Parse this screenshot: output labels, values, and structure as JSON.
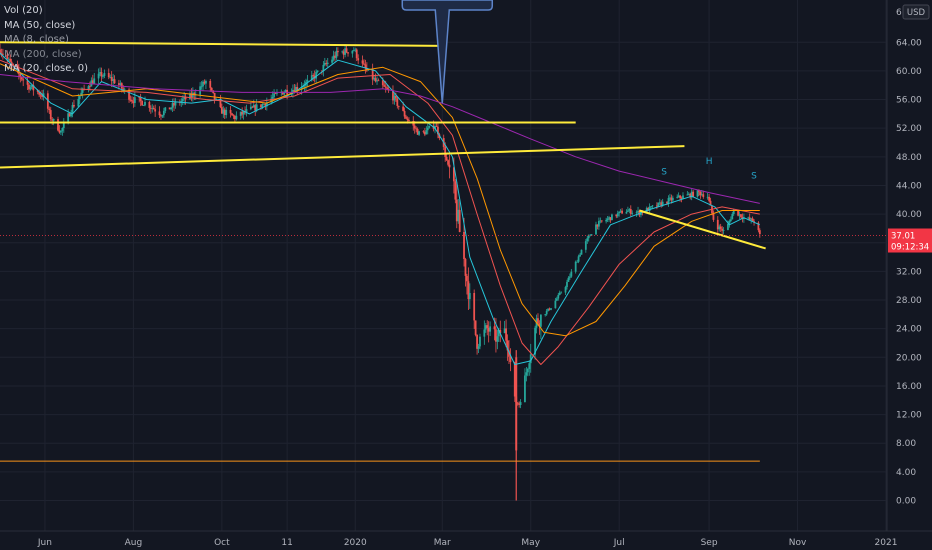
{
  "legend": [
    "Vol (20)",
    "MA (50, close)",
    "MA (8, close)",
    "MA (200, close)",
    "MA (20, close, 0)"
  ],
  "price_axis": {
    "unit": "USD",
    "top_partial": "6",
    "ticks": [
      "64.00",
      "60.00",
      "56.00",
      "52.00",
      "48.00",
      "44.00",
      "40.00",
      "36.00",
      "32.00",
      "28.00",
      "24.00",
      "20.00",
      "16.00",
      "12.00",
      "8.00",
      "4.00",
      "0.00"
    ]
  },
  "time_axis": {
    "ticks": [
      "Jun",
      "Aug",
      "Oct",
      "11",
      "2020",
      "Mar",
      "May",
      "Jul",
      "Sep",
      "Nov",
      "2021"
    ]
  },
  "last_price": {
    "value": "37.01",
    "countdown": "09:12:34"
  },
  "pattern_labels": [
    "S",
    "H",
    "S"
  ],
  "colors": {
    "background": "#131722",
    "up": "#26a69a",
    "down": "#ef5350",
    "trendline": "#ffeb3b",
    "support": "#f7931a",
    "ma50": "#ef5350",
    "ma8": "#26c6da",
    "ma200": "#9c27b0",
    "ma20": "#ff9800",
    "last_price": "#f23645"
  },
  "chart_data": {
    "type": "candlestick",
    "title": "",
    "ylabel": "USD",
    "ylim": [
      0,
      66
    ],
    "x_range": [
      "2019-05",
      "2021-01"
    ],
    "series_price_path": [
      [
        "2019-05-01",
        63.0
      ],
      [
        "2019-05-10",
        60.5
      ],
      [
        "2019-05-20",
        58.0
      ],
      [
        "2019-05-31",
        56.5
      ],
      [
        "2019-06-05",
        53.5
      ],
      [
        "2019-06-12",
        51.5
      ],
      [
        "2019-06-20",
        55.0
      ],
      [
        "2019-06-30",
        58.0
      ],
      [
        "2019-07-10",
        59.5
      ],
      [
        "2019-07-20",
        58.5
      ],
      [
        "2019-07-31",
        56.0
      ],
      [
        "2019-08-10",
        55.5
      ],
      [
        "2019-08-20",
        54.0
      ],
      [
        "2019-08-31",
        55.5
      ],
      [
        "2019-09-10",
        56.5
      ],
      [
        "2019-09-20",
        58.5
      ],
      [
        "2019-09-30",
        54.5
      ],
      [
        "2019-10-10",
        53.5
      ],
      [
        "2019-10-20",
        54.5
      ],
      [
        "2019-10-31",
        55.5
      ],
      [
        "2019-11-10",
        57.0
      ],
      [
        "2019-11-20",
        57.5
      ],
      [
        "2019-11-30",
        58.5
      ],
      [
        "2019-12-10",
        60.5
      ],
      [
        "2019-12-20",
        62.5
      ],
      [
        "2019-12-31",
        63.0
      ],
      [
        "2020-01-05",
        61.0
      ],
      [
        "2020-01-15",
        58.5
      ],
      [
        "2020-01-25",
        57.0
      ],
      [
        "2020-02-05",
        53.5
      ],
      [
        "2020-02-15",
        51.0
      ],
      [
        "2020-02-25",
        52.5
      ],
      [
        "2020-03-01",
        50.0
      ],
      [
        "2020-03-08",
        44.0
      ],
      [
        "2020-03-15",
        35.0
      ],
      [
        "2020-03-20",
        28.0
      ],
      [
        "2020-03-25",
        22.0
      ],
      [
        "2020-04-01",
        24.0
      ],
      [
        "2020-04-08",
        22.5
      ],
      [
        "2020-04-12",
        24.5
      ],
      [
        "2020-04-16",
        21.0
      ],
      [
        "2020-04-20",
        14.0
      ],
      [
        "2020-04-23",
        13.5
      ],
      [
        "2020-04-27",
        17.0
      ],
      [
        "2020-05-05",
        25.0
      ],
      [
        "2020-05-15",
        27.0
      ],
      [
        "2020-05-25",
        30.0
      ],
      [
        "2020-06-05",
        35.0
      ],
      [
        "2020-06-15",
        38.5
      ],
      [
        "2020-06-25",
        39.5
      ],
      [
        "2020-07-05",
        40.5
      ],
      [
        "2020-07-15",
        40.2
      ],
      [
        "2020-07-25",
        41.0
      ],
      [
        "2020-08-05",
        42.0
      ],
      [
        "2020-08-15",
        42.5
      ],
      [
        "2020-08-25",
        43.0
      ],
      [
        "2020-08-31",
        42.5
      ],
      [
        "2020-09-05",
        38.5
      ],
      [
        "2020-09-12",
        37.5
      ],
      [
        "2020-09-18",
        40.5
      ],
      [
        "2020-09-25",
        39.5
      ],
      [
        "2020-10-02",
        39.0
      ],
      [
        "2020-10-06",
        37.01
      ]
    ],
    "ma_series": [
      {
        "name": "MA (8, close)",
        "values": [
          [
            "2019-05-01",
            62.5
          ],
          [
            "2019-06-05",
            55.5
          ],
          [
            "2019-06-20",
            54.0
          ],
          [
            "2019-07-10",
            58.5
          ],
          [
            "2019-08-10",
            56.0
          ],
          [
            "2019-09-10",
            55.5
          ],
          [
            "2019-09-30",
            56.0
          ],
          [
            "2019-10-20",
            54.0
          ],
          [
            "2019-11-20",
            57.0
          ],
          [
            "2019-12-20",
            61.5
          ],
          [
            "2020-01-15",
            60.0
          ],
          [
            "2020-02-05",
            55.0
          ],
          [
            "2020-02-25",
            52.0
          ],
          [
            "2020-03-08",
            48.0
          ],
          [
            "2020-03-20",
            34.0
          ],
          [
            "2020-04-05",
            25.5
          ],
          [
            "2020-04-20",
            19.0
          ],
          [
            "2020-05-01",
            19.5
          ],
          [
            "2020-05-15",
            25.0
          ],
          [
            "2020-06-05",
            32.0
          ],
          [
            "2020-06-25",
            38.5
          ],
          [
            "2020-07-20",
            40.5
          ],
          [
            "2020-08-20",
            42.5
          ],
          [
            "2020-09-05",
            41.0
          ],
          [
            "2020-09-15",
            38.5
          ],
          [
            "2020-09-25",
            39.5
          ],
          [
            "2020-10-06",
            38.5
          ]
        ]
      },
      {
        "name": "MA (50, close)",
        "values": [
          [
            "2019-05-01",
            61.5
          ],
          [
            "2019-06-20",
            57.5
          ],
          [
            "2019-08-10",
            57.0
          ],
          [
            "2019-09-20",
            56.0
          ],
          [
            "2019-10-20",
            55.5
          ],
          [
            "2019-11-20",
            56.5
          ],
          [
            "2019-12-20",
            59.0
          ],
          [
            "2020-01-25",
            59.5
          ],
          [
            "2020-02-20",
            55.5
          ],
          [
            "2020-03-08",
            51.0
          ],
          [
            "2020-03-25",
            40.0
          ],
          [
            "2020-04-10",
            30.0
          ],
          [
            "2020-04-25",
            22.0
          ],
          [
            "2020-05-08",
            19.0
          ],
          [
            "2020-05-20",
            21.5
          ],
          [
            "2020-06-10",
            27.0
          ],
          [
            "2020-07-01",
            33.0
          ],
          [
            "2020-07-25",
            37.5
          ],
          [
            "2020-08-20",
            40.0
          ],
          [
            "2020-09-10",
            41.0
          ],
          [
            "2020-10-06",
            40.0
          ]
        ]
      },
      {
        "name": "MA (20, close, 0)",
        "values": [
          [
            "2019-05-01",
            61.0
          ],
          [
            "2019-06-20",
            56.5
          ],
          [
            "2019-08-10",
            57.5
          ],
          [
            "2019-09-20",
            56.5
          ],
          [
            "2019-11-01",
            55.5
          ],
          [
            "2019-12-20",
            59.5
          ],
          [
            "2020-01-20",
            60.5
          ],
          [
            "2020-02-15",
            58.5
          ],
          [
            "2020-03-08",
            53.5
          ],
          [
            "2020-03-25",
            45.0
          ],
          [
            "2020-04-10",
            35.0
          ],
          [
            "2020-04-25",
            27.5
          ],
          [
            "2020-05-10",
            23.5
          ],
          [
            "2020-05-25",
            23.0
          ],
          [
            "2020-06-15",
            25.0
          ],
          [
            "2020-07-05",
            30.0
          ],
          [
            "2020-07-25",
            35.5
          ],
          [
            "2020-08-20",
            39.0
          ],
          [
            "2020-09-10",
            40.5
          ],
          [
            "2020-10-06",
            40.5
          ]
        ]
      },
      {
        "name": "MA (200, close)",
        "values": [
          [
            "2019-05-01",
            59.5
          ],
          [
            "2019-06-15",
            58.5
          ],
          [
            "2019-08-15",
            57.5
          ],
          [
            "2019-10-15",
            57.0
          ],
          [
            "2019-12-15",
            57.0
          ],
          [
            "2020-01-20",
            57.5
          ],
          [
            "2020-02-15",
            56.5
          ],
          [
            "2020-03-08",
            55.0
          ],
          [
            "2020-04-01",
            53.0
          ],
          [
            "2020-05-01",
            50.5
          ],
          [
            "2020-06-01",
            48.0
          ],
          [
            "2020-07-01",
            46.0
          ],
          [
            "2020-08-01",
            44.5
          ],
          [
            "2020-09-01",
            43.0
          ],
          [
            "2020-10-06",
            41.5
          ]
        ]
      }
    ],
    "drawings": [
      {
        "name": "upper-resistance",
        "points": [
          [
            "2019-05-01",
            64.0
          ],
          [
            "2020-03-01",
            63.5
          ]
        ]
      },
      {
        "name": "mid-support",
        "points": [
          [
            "2019-05-01",
            52.8
          ],
          [
            "2020-06-01",
            52.8
          ]
        ]
      },
      {
        "name": "rising-trendline",
        "points": [
          [
            "2019-05-01",
            46.5
          ],
          [
            "2020-08-15",
            49.5
          ]
        ]
      },
      {
        "name": "neckline",
        "points": [
          [
            "2020-07-15",
            40.5
          ],
          [
            "2020-10-10",
            35.2
          ]
        ]
      },
      {
        "name": "low-support",
        "points": [
          [
            "2019-05-01",
            5.5
          ],
          [
            "2020-10-06",
            5.5
          ]
        ]
      }
    ],
    "head_shoulders": [
      {
        "label": "S",
        "x": "2020-08-01",
        "y": 45.5
      },
      {
        "label": "H",
        "x": "2020-09-01",
        "y": 47.0
      },
      {
        "label": "S",
        "x": "2020-10-02",
        "y": 45.0
      }
    ],
    "callout_pointer": {
      "x": "2020-03-01",
      "y": 55.5
    }
  }
}
